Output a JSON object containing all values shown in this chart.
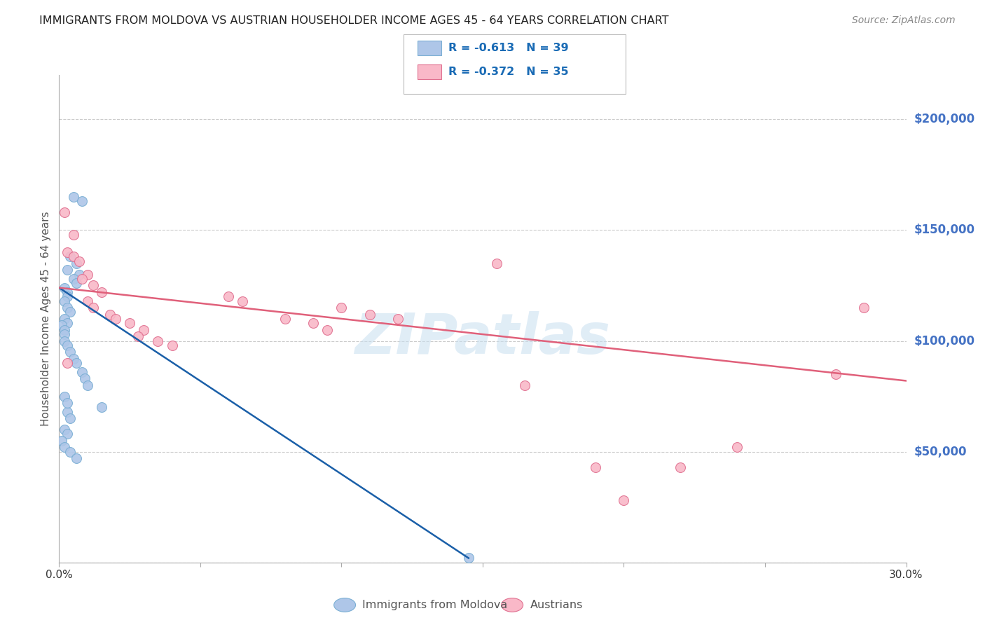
{
  "title": "IMMIGRANTS FROM MOLDOVA VS AUSTRIAN HOUSEHOLDER INCOME AGES 45 - 64 YEARS CORRELATION CHART",
  "source": "Source: ZipAtlas.com",
  "ylabel": "Householder Income Ages 45 - 64 years",
  "xlim": [
    0.0,
    0.3
  ],
  "ylim": [
    0,
    220000
  ],
  "yticks": [
    0,
    50000,
    100000,
    150000,
    200000
  ],
  "xticks": [
    0.0,
    0.05,
    0.1,
    0.15,
    0.2,
    0.25,
    0.3
  ],
  "series": [
    {
      "name": "Immigrants from Moldova",
      "R": -0.613,
      "N": 39,
      "color": "#aec6e8",
      "edge_color": "#7bafd4",
      "x": [
        0.005,
        0.008,
        0.004,
        0.006,
        0.003,
        0.007,
        0.005,
        0.006,
        0.002,
        0.003,
        0.003,
        0.002,
        0.003,
        0.004,
        0.002,
        0.003,
        0.001,
        0.002,
        0.002,
        0.002,
        0.003,
        0.004,
        0.005,
        0.006,
        0.008,
        0.009,
        0.01,
        0.015,
        0.003,
        0.004,
        0.002,
        0.003,
        0.001,
        0.002,
        0.004,
        0.006,
        0.002,
        0.003,
        0.145
      ],
      "y": [
        165000,
        163000,
        138000,
        135000,
        132000,
        130000,
        128000,
        126000,
        124000,
        122000,
        120000,
        118000,
        115000,
        113000,
        110000,
        108000,
        107000,
        105000,
        103000,
        100000,
        98000,
        95000,
        92000,
        90000,
        86000,
        83000,
        80000,
        70000,
        68000,
        65000,
        60000,
        58000,
        55000,
        52000,
        50000,
        47000,
        75000,
        72000,
        2000
      ],
      "line_color": "#1a5fa8",
      "line_x": [
        0.0,
        0.145
      ],
      "line_y": [
        124000,
        2000
      ]
    },
    {
      "name": "Austrians",
      "R": -0.372,
      "N": 35,
      "color": "#f9b8c8",
      "edge_color": "#e07090",
      "x": [
        0.002,
        0.005,
        0.003,
        0.005,
        0.007,
        0.01,
        0.008,
        0.012,
        0.015,
        0.01,
        0.012,
        0.018,
        0.02,
        0.025,
        0.03,
        0.028,
        0.035,
        0.04,
        0.06,
        0.065,
        0.08,
        0.09,
        0.095,
        0.1,
        0.11,
        0.12,
        0.155,
        0.165,
        0.19,
        0.2,
        0.22,
        0.24,
        0.275,
        0.285,
        0.003
      ],
      "y": [
        158000,
        148000,
        140000,
        138000,
        136000,
        130000,
        128000,
        125000,
        122000,
        118000,
        115000,
        112000,
        110000,
        108000,
        105000,
        102000,
        100000,
        98000,
        120000,
        118000,
        110000,
        108000,
        105000,
        115000,
        112000,
        110000,
        135000,
        80000,
        43000,
        28000,
        43000,
        52000,
        85000,
        115000,
        90000
      ],
      "line_color": "#e0607a",
      "line_x": [
        0.0,
        0.3
      ],
      "line_y": [
        124000,
        82000
      ]
    }
  ],
  "legend_entries": [
    {
      "label_r": "R = ",
      "r_val": "-0.613",
      "label_n": "  N = ",
      "n_val": "39",
      "color": "#aec6e8",
      "edge": "#7bafd4"
    },
    {
      "label_r": "R = ",
      "r_val": "-0.372",
      "label_n": "  N = ",
      "n_val": "35",
      "color": "#f9b8c8",
      "edge": "#e07090"
    }
  ],
  "bottom_legend": [
    {
      "label": "Immigrants from Moldova",
      "color": "#aec6e8",
      "edge": "#7bafd4"
    },
    {
      "label": "Austrians",
      "color": "#f9b8c8",
      "edge": "#e07090"
    }
  ],
  "watermark": "ZIPatlas",
  "bg_color": "#ffffff",
  "grid_color": "#cccccc",
  "title_color": "#222222",
  "axis_label_color": "#555555",
  "right_tick_color": "#4472c4",
  "scatter_size": 100
}
